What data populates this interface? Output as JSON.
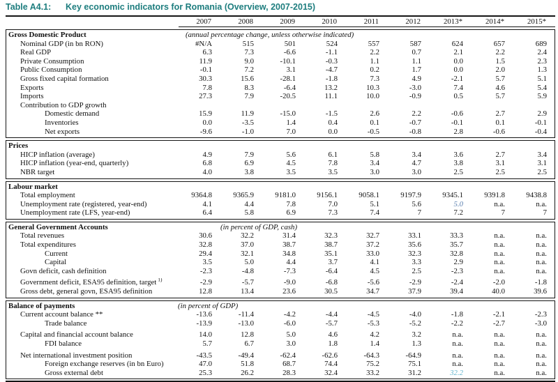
{
  "title": {
    "label": "Table A4.1:",
    "text": "Key economic indicators for Romania (Overview, 2007-2015)"
  },
  "colors": {
    "accent": "#1d7d7e",
    "highlight_blue": "#5b7fae",
    "highlight_cyan": "#63b6cf"
  },
  "columns": [
    "2007",
    "2008",
    "2009",
    "2010",
    "2011",
    "2012",
    "2013*",
    "2014*",
    "2015*"
  ],
  "sections": [
    {
      "header": "Gross Domestic Product",
      "note": "(annual percentage change, unless otherwise indicated)",
      "rows": [
        {
          "label": "Nominal GDP (in bn RON)",
          "indent": 1,
          "values": [
            "#N/A",
            "515",
            "501",
            "524",
            "557",
            "587",
            "624",
            "657",
            "689"
          ]
        },
        {
          "label": "Real GDP",
          "indent": 1,
          "values": [
            "6.3",
            "7.3",
            "-6.6",
            "-1.1",
            "2.2",
            "0.7",
            "2.1",
            "2.2",
            "2.4"
          ]
        },
        {
          "label": "Private Consumption",
          "indent": 1,
          "values": [
            "11.9",
            "9.0",
            "-10.1",
            "-0.3",
            "1.1",
            "1.1",
            "0.0",
            "1.5",
            "2.3"
          ]
        },
        {
          "label": "Public Consumption",
          "indent": 1,
          "values": [
            "-0.1",
            "7.2",
            "3.1",
            "-4.7",
            "0.2",
            "1.7",
            "0.0",
            "2.0",
            "1.3"
          ]
        },
        {
          "label": "Gross fixed capital formation",
          "indent": 1,
          "values": [
            "30.3",
            "15.6",
            "-28.1",
            "-1.8",
            "7.3",
            "4.9",
            "-2.1",
            "5.7",
            "5.1"
          ]
        },
        {
          "label": "Exports",
          "indent": 1,
          "values": [
            "7.8",
            "8.3",
            "-6.4",
            "13.2",
            "10.3",
            "-3.0",
            "7.4",
            "4.6",
            "5.4"
          ]
        },
        {
          "label": "Imports",
          "indent": 1,
          "values": [
            "27.3",
            "7.9",
            "-20.5",
            "11.1",
            "10.0",
            "-0.9",
            "0.5",
            "5.7",
            "5.9"
          ]
        },
        {
          "label": "Contribution to GDP growth",
          "indent": 1,
          "values": [
            "",
            "",
            "",
            "",
            "",
            "",
            "",
            "",
            ""
          ]
        },
        {
          "label": "Domestic demand",
          "indent": 2,
          "values": [
            "15.9",
            "11.9",
            "-15.0",
            "-1.5",
            "2.6",
            "2.2",
            "-0.6",
            "2.7",
            "2.9"
          ]
        },
        {
          "label": "Inventories",
          "indent": 2,
          "values": [
            "0.0",
            "-3.5",
            "1.4",
            "0.4",
            "0.1",
            "-0.7",
            "-0.1",
            "0.1",
            "-0.1"
          ]
        },
        {
          "label": "Net exports",
          "indent": 2,
          "values": [
            "-9.6",
            "-1.0",
            "7.0",
            "0.0",
            "-0.5",
            "-0.8",
            "2.8",
            "-0.6",
            "-0.4"
          ]
        }
      ]
    },
    {
      "header": "Prices",
      "note": "",
      "rows": [
        {
          "label": "HICP inflation (average)",
          "indent": 1,
          "values": [
            "4.9",
            "7.9",
            "5.6",
            "6.1",
            "5.8",
            "3.4",
            "3.6",
            "2.7",
            "3.4"
          ]
        },
        {
          "label": "HICP inflation (year-end, quarterly)",
          "indent": 1,
          "values": [
            "6.8",
            "6.9",
            "4.5",
            "7.8",
            "3.4",
            "4.7",
            "3.8",
            "3.1",
            "3.1"
          ]
        },
        {
          "label": "NBR target",
          "indent": 1,
          "values": [
            "4.0",
            "3.8",
            "3.5",
            "3.5",
            "3.0",
            "3.0",
            "2.5",
            "2.5",
            "2.5"
          ]
        }
      ]
    },
    {
      "header": "Labour market",
      "note": "",
      "rows": [
        {
          "label": "Total employment",
          "indent": 1,
          "values": [
            "9364.8",
            "9365.9",
            "9181.0",
            "9156.1",
            "9058.1",
            "9197.9",
            "9345.1",
            "9391.8",
            "9438.8"
          ]
        },
        {
          "label": "Unemployment rate (registered, year-end)",
          "indent": 1,
          "values": [
            "4.1",
            "4.4",
            "7.8",
            "7.0",
            "5.1",
            "5.6",
            "5.0",
            "n.a.",
            "n.a."
          ],
          "special": {
            "6": "em-blue"
          }
        },
        {
          "label": "Unemployment rate (LFS, year-end)",
          "indent": 1,
          "values": [
            "6.4",
            "5.8",
            "6.9",
            "7.3",
            "7.4",
            "7",
            "7.2",
            "7",
            "7"
          ]
        }
      ]
    },
    {
      "header": "General Government Accounts",
      "note": "(in percent of GDP, cash)",
      "rows": [
        {
          "label": "Total revenues",
          "indent": 1,
          "values": [
            "30.6",
            "32.2",
            "31.4",
            "32.3",
            "32.7",
            "33.1",
            "33.3",
            "n.a.",
            "n.a."
          ]
        },
        {
          "label": "Total expenditures",
          "indent": 1,
          "values": [
            "32.8",
            "37.0",
            "38.7",
            "38.7",
            "37.2",
            "35.6",
            "35.7",
            "n.a.",
            "n.a."
          ]
        },
        {
          "label": "Current",
          "indent": 2,
          "values": [
            "29.4",
            "32.1",
            "34.8",
            "35.1",
            "33.0",
            "32.3",
            "32.8",
            "n.a.",
            "n.a."
          ]
        },
        {
          "label": "Capital",
          "indent": 2,
          "values": [
            "3.5",
            "5.0",
            "4.4",
            "3.7",
            "4.1",
            "3.3",
            "2.9",
            "n.a.",
            "n.a."
          ]
        },
        {
          "label": "Govn deficit, cash definition",
          "indent": 1,
          "values": [
            "-2.3",
            "-4.8",
            "-7.3",
            "-6.4",
            "4.5",
            "2.5",
            "-2.3",
            "n.a.",
            "n.a."
          ]
        },
        {
          "label": "Government deficit, ESA95 definition, target",
          "sup": "1)",
          "indent": 1,
          "gap_before": true,
          "values": [
            "-2.9",
            "-5.7",
            "-9.0",
            "-6.8",
            "-5.6",
            "-2.9",
            "-2.4",
            "-2.0",
            "-1.8"
          ]
        },
        {
          "label": "Gross debt, general govn, ESA95 definition",
          "indent": 1,
          "values": [
            "12.8",
            "13.4",
            "23.6",
            "30.5",
            "34.7",
            "37.9",
            "39.4",
            "40.0",
            "39.6"
          ]
        }
      ]
    },
    {
      "header": "Balance of payments",
      "note": "(in percent of GDP)",
      "rows": [
        {
          "label": "Current account balance **",
          "indent": 1,
          "values": [
            "-13.6",
            "-11.4",
            "-4.2",
            "-4.4",
            "-4.5",
            "-4.0",
            "-1.8",
            "-2.1",
            "-2.3"
          ]
        },
        {
          "label": "Trade balance",
          "indent": 2,
          "values": [
            "-13.9",
            "-13.0",
            "-6.0",
            "-5.7",
            "-5.3",
            "-5.2",
            "-2.2",
            "-2.7",
            "-3.0"
          ]
        },
        {
          "label": "Capital and financial account balance",
          "indent": 1,
          "gap_before": true,
          "values": [
            "14.0",
            "12.8",
            "5.0",
            "4.6",
            "4.2",
            "3.2",
            "n.a.",
            "n.a.",
            "n.a."
          ]
        },
        {
          "label": "FDI balance",
          "indent": 2,
          "values": [
            "5.7",
            "6.7",
            "3.0",
            "1.8",
            "1.4",
            "1.3",
            "n.a.",
            "n.a.",
            "n.a."
          ]
        },
        {
          "label": "Net international investment position",
          "indent": 1,
          "gap_before": true,
          "values": [
            "-43.5",
            "-49.4",
            "-62.4",
            "-62.6",
            "-64.3",
            "-64.9",
            "n.a.",
            "n.a.",
            "n.a."
          ]
        },
        {
          "label": "Foreign exchange reserves (in bn Euro)",
          "indent": 2,
          "values": [
            "47.0",
            "51.8",
            "68.7",
            "74.4",
            "75.2",
            "75.1",
            "n.a.",
            "n.a.",
            "n.a."
          ]
        },
        {
          "label": "Gross external debt",
          "indent": 2,
          "values": [
            "25.3",
            "26.2",
            "28.3",
            "32.4",
            "33.2",
            "31.2",
            "32.2",
            "n.a.",
            "n.a."
          ],
          "special": {
            "6": "em-cyan"
          }
        }
      ]
    }
  ]
}
